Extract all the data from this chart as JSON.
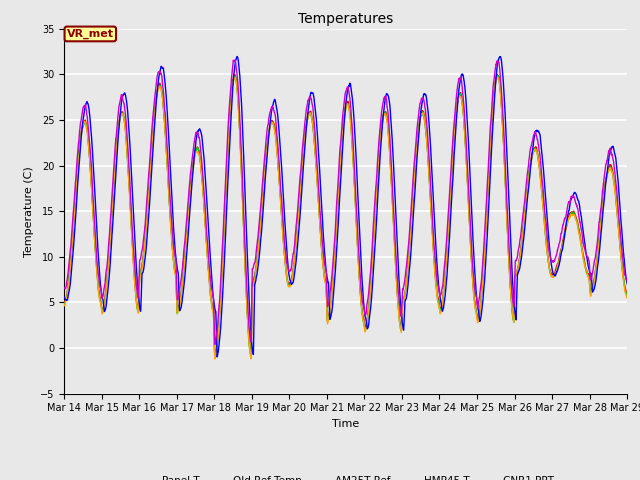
{
  "title": "Temperatures",
  "xlabel": "Time",
  "ylabel": "Temperature (C)",
  "ylim": [
    -5,
    35
  ],
  "yticks": [
    -5,
    0,
    5,
    10,
    15,
    20,
    25,
    30,
    35
  ],
  "background_color": "#e8e8e8",
  "figure_bg": "#e8e8e8",
  "grid_color": "white",
  "annotation_text": "VR_met",
  "annotation_bg": "#ffff99",
  "annotation_border": "#8b0000",
  "annotation_text_color": "#8b0000",
  "series_colors": {
    "Panel T": "#ff0000",
    "Old Ref Temp": "#ffa500",
    "AM25T Ref": "#00cc00",
    "HMP45 T": "#0000ff",
    "CNR1 PRT": "#cc00cc"
  },
  "x_tick_labels": [
    "Mar 14",
    "Mar 15",
    "Mar 16",
    "Mar 17",
    "Mar 18",
    "Mar 19",
    "Mar 20",
    "Mar 21",
    "Mar 22",
    "Mar 23",
    "Mar 24",
    "Mar 25",
    "Mar 26",
    "Mar 27",
    "Mar 28",
    "Mar 29"
  ],
  "n_days": 15,
  "pts_per_day": 144
}
